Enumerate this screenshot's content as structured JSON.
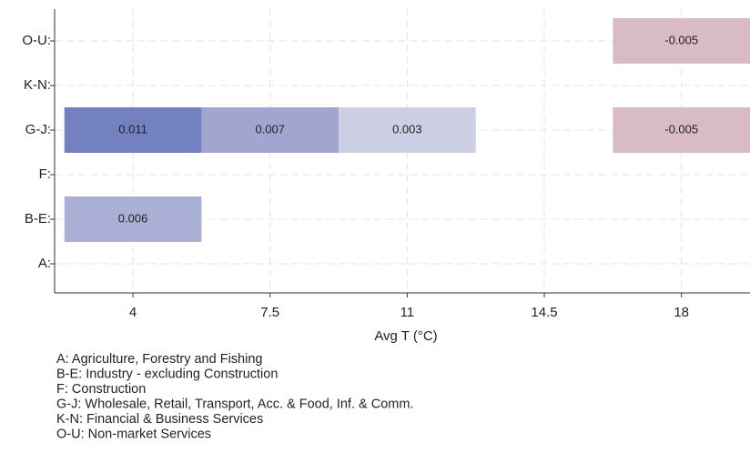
{
  "chart_data": {
    "type": "heatmap",
    "xlabel": "Avg T (°C)",
    "x": [
      4,
      7.5,
      11,
      14.5,
      18
    ],
    "categories": [
      "A:",
      "B-E:",
      "F:",
      "G-J:",
      "K-N:",
      "O-U:"
    ],
    "values": [
      [
        null,
        null,
        null,
        null,
        null
      ],
      [
        0.006,
        null,
        null,
        null,
        null
      ],
      [
        null,
        null,
        null,
        null,
        null
      ],
      [
        0.011,
        0.007,
        0.003,
        null,
        -0.005
      ],
      [
        null,
        null,
        null,
        null,
        null
      ],
      [
        null,
        null,
        null,
        null,
        -0.005
      ]
    ],
    "colors": [
      [
        null,
        null,
        null,
        null,
        null
      ],
      [
        "#abb1d6",
        null,
        null,
        null,
        null
      ],
      [
        null,
        null,
        null,
        null,
        null
      ],
      [
        "#7381c0",
        "#a0a6d0",
        "#cdd0e5",
        null,
        "#d9bcc3"
      ],
      [
        null,
        null,
        null,
        null,
        null
      ],
      [
        null,
        null,
        null,
        null,
        "#d9bcc3"
      ]
    ],
    "xlim": [
      2,
      19.75
    ],
    "xticks": [
      4,
      7.5,
      11,
      14.5,
      18
    ],
    "grid": true,
    "notes": [
      "A: Agriculture, Forestry and Fishing",
      "B-E: Industry - excluding Construction",
      "F: Construction",
      "G-J: Wholesale, Retail, Transport, Acc. & Food, Inf. & Comm.",
      "K-N: Financial & Business Services",
      "O-U: Non-market Services"
    ]
  }
}
